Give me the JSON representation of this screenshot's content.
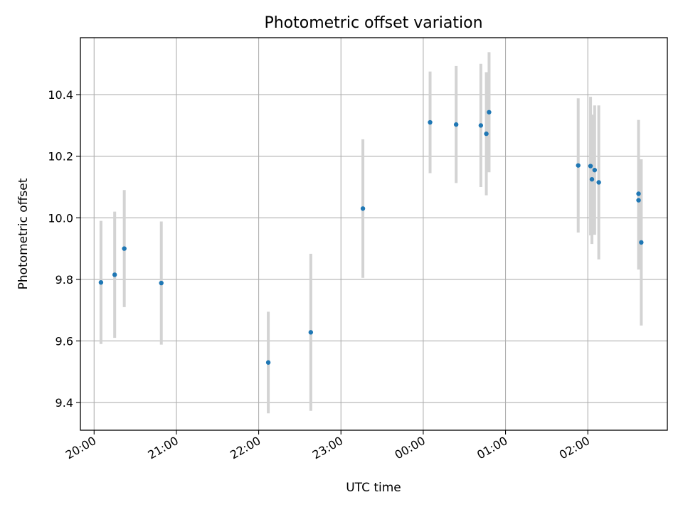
{
  "chart_data": {
    "type": "scatter",
    "title": "Photometric offset variation",
    "xlabel": "UTC time",
    "ylabel": "Photometric offset",
    "xlim": [
      "19:50",
      "26:58"
    ],
    "ylim": [
      9.31,
      10.585
    ],
    "grid": true,
    "colors": {
      "point": "#1f77b4",
      "errorbar": "#d3d3d3",
      "grid": "#b0b0b0"
    },
    "x_ticks": [
      {
        "value": "20:00",
        "label": "20:00"
      },
      {
        "value": "21:00",
        "label": "21:00"
      },
      {
        "value": "22:00",
        "label": "22:00"
      },
      {
        "value": "23:00",
        "label": "23:00"
      },
      {
        "value": "24:00",
        "label": "00:00"
      },
      {
        "value": "25:00",
        "label": "01:00"
      },
      {
        "value": "26:00",
        "label": "02:00"
      }
    ],
    "y_ticks": [
      "9.4",
      "9.6",
      "9.8",
      "10.0",
      "10.2",
      "10.4"
    ],
    "points": [
      {
        "x": "20:05",
        "y": 9.79,
        "yerr": 0.2
      },
      {
        "x": "20:15",
        "y": 9.815,
        "yerr": 0.205
      },
      {
        "x": "20:22",
        "y": 9.9,
        "yerr": 0.19
      },
      {
        "x": "20:49",
        "y": 9.788,
        "yerr": 0.2
      },
      {
        "x": "22:07",
        "y": 9.53,
        "yerr": 0.165
      },
      {
        "x": "22:38",
        "y": 9.628,
        "yerr": 0.255
      },
      {
        "x": "23:16",
        "y": 10.03,
        "yerr": 0.225
      },
      {
        "x": "24:05",
        "y": 10.31,
        "yerr": 0.165
      },
      {
        "x": "24:24",
        "y": 10.303,
        "yerr": 0.19
      },
      {
        "x": "24:42",
        "y": 10.3,
        "yerr": 0.2
      },
      {
        "x": "24:46",
        "y": 10.273,
        "yerr": 0.2
      },
      {
        "x": "24:48",
        "y": 10.343,
        "yerr": 0.195
      },
      {
        "x": "25:53",
        "y": 10.17,
        "yerr": 0.218
      },
      {
        "x": "26:02",
        "y": 10.168,
        "yerr": 0.225
      },
      {
        "x": "26:03",
        "y": 10.125,
        "yerr": 0.21
      },
      {
        "x": "26:05",
        "y": 10.155,
        "yerr": 0.21
      },
      {
        "x": "26:08",
        "y": 10.115,
        "yerr": 0.25
      },
      {
        "x": "26:37",
        "y": 10.078,
        "yerr": 0.24
      },
      {
        "x": "26:37",
        "y": 10.057,
        "yerr": 0.225
      },
      {
        "x": "26:39",
        "y": 9.92,
        "yerr": 0.27
      }
    ]
  }
}
